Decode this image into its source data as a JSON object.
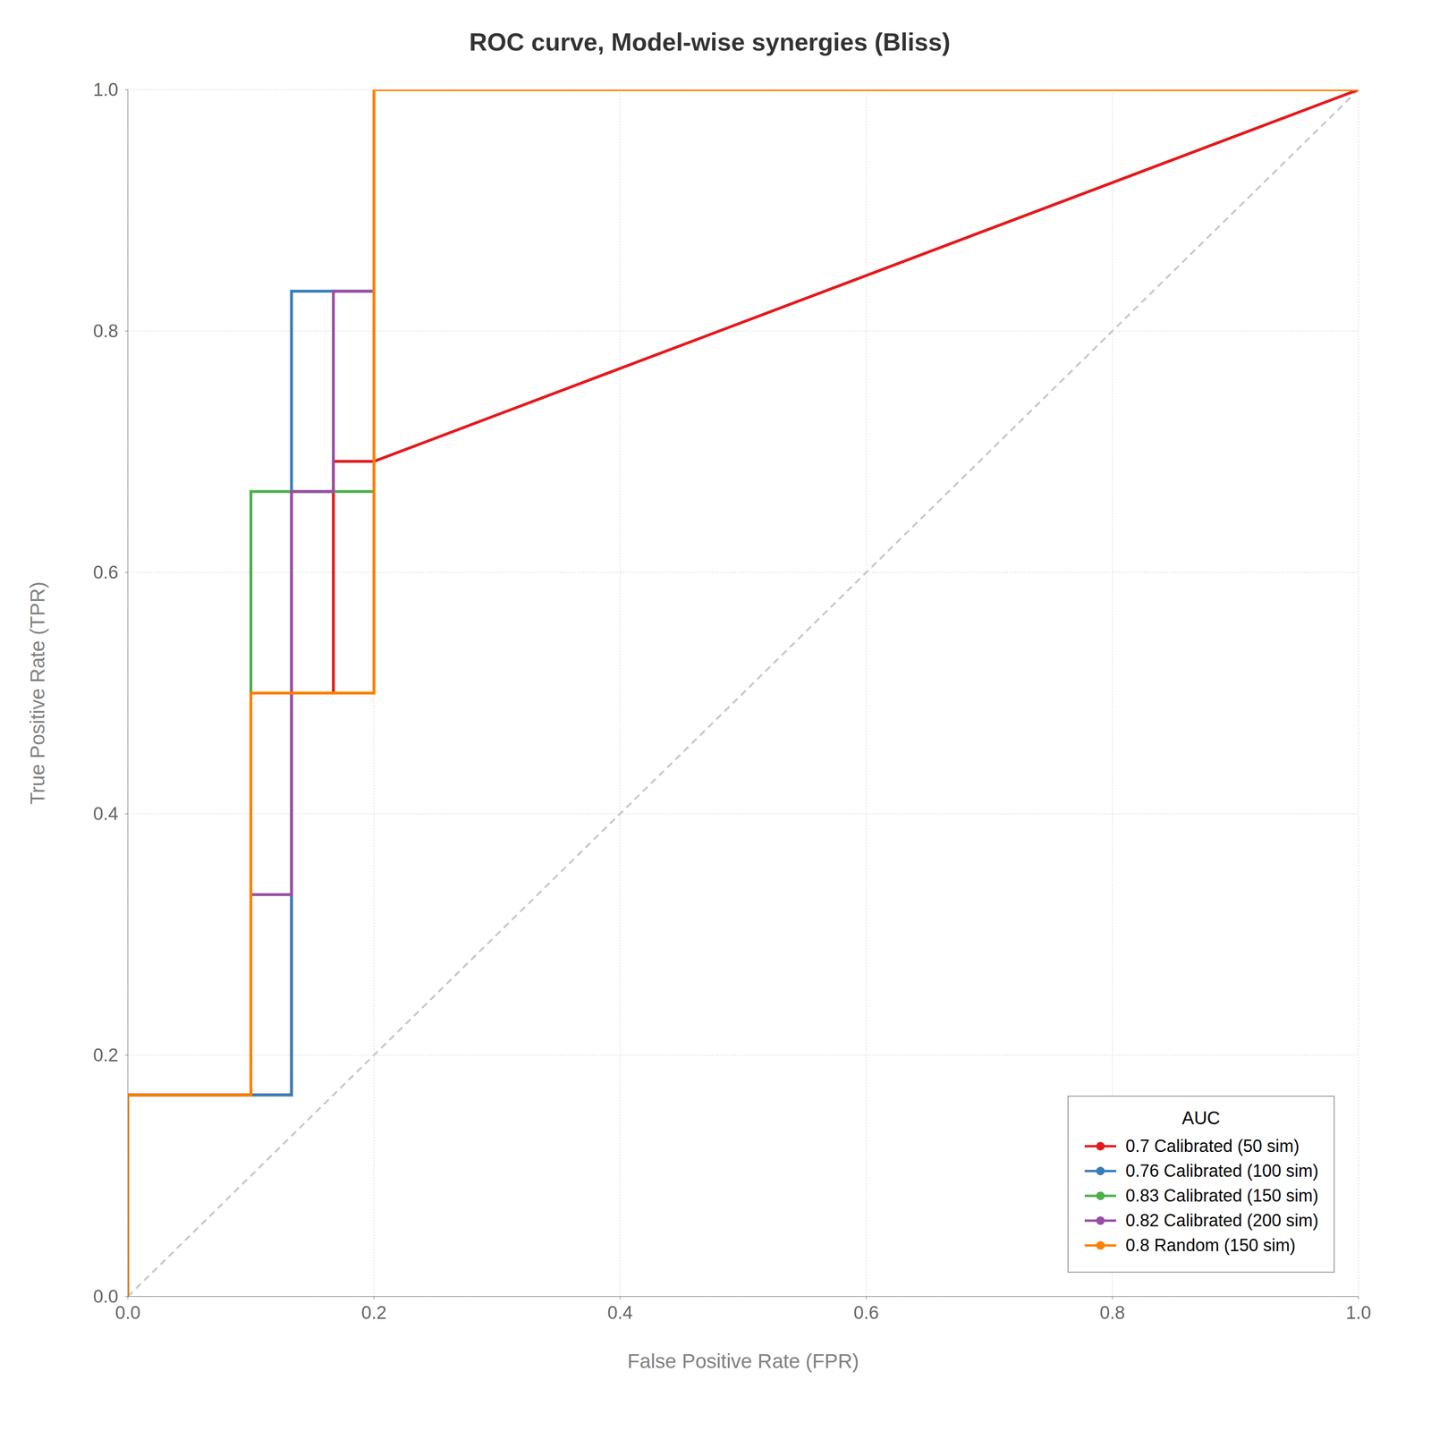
{
  "chart_data": {
    "type": "line",
    "title": "ROC curve, Model-wise synergies (Bliss)",
    "xlabel": "False Positive Rate (FPR)",
    "ylabel": "True Positive Rate (TPR)",
    "legend_title": "AUC",
    "legend": "lower right",
    "grid": true,
    "xlim": [
      0.0,
      1.0
    ],
    "ylim": [
      0.0,
      1.0
    ],
    "xticks": [
      {
        "value": 0.0,
        "label": "0.0"
      },
      0.2,
      0.4,
      0.6,
      0.8,
      {
        "value": 1.0,
        "label": "1.0"
      }
    ],
    "yticks": [
      {
        "value": 0.0,
        "label": "0.0"
      },
      0.2,
      0.4,
      0.6,
      0.8,
      {
        "value": 1.0,
        "label": "1.0"
      }
    ],
    "series": [
      {
        "color": "#c8c8c8",
        "line_style": "dashed",
        "x": [
          0,
          1
        ],
        "values": [
          0,
          1
        ]
      },
      {
        "name": "0.7 Calibrated (50 sim)",
        "color": "#e41a1c",
        "x": [
          0.0,
          0.0,
          0.067,
          0.067,
          0.1,
          0.1,
          0.133,
          0.133,
          0.167,
          0.167,
          0.2,
          0.2,
          1.0
        ],
        "values": [
          0.0,
          0.167,
          0.167,
          0.167,
          0.167,
          0.167,
          0.167,
          0.5,
          0.5,
          0.692,
          0.692,
          0.692,
          1.0
        ]
      },
      {
        "name": "0.76 Calibrated (100 sim)",
        "color": "#377eb8",
        "x": [
          0.0,
          0.0,
          0.067,
          0.067,
          0.1,
          0.1,
          0.133,
          0.133,
          0.167,
          0.167,
          0.2,
          0.2,
          1.0
        ],
        "values": [
          0.0,
          0.167,
          0.167,
          0.167,
          0.167,
          0.167,
          0.167,
          0.833,
          0.833,
          0.833,
          0.833,
          1.0,
          1.0
        ]
      },
      {
        "name": "0.83 Calibrated (150 sim)",
        "color": "#4daf4a",
        "x": [
          0.0,
          0.0,
          0.067,
          0.067,
          0.1,
          0.1,
          0.133,
          0.133,
          0.167,
          0.167,
          0.2,
          0.2,
          1.0
        ],
        "values": [
          0.0,
          0.167,
          0.167,
          0.167,
          0.167,
          0.667,
          0.667,
          0.667,
          0.667,
          0.667,
          0.667,
          1.0,
          1.0
        ]
      },
      {
        "name": "0.82 Calibrated (200 sim)",
        "color": "#984ea3",
        "x": [
          0.0,
          0.0,
          0.067,
          0.067,
          0.1,
          0.1,
          0.133,
          0.133,
          0.167,
          0.167,
          0.2,
          0.2,
          1.0
        ],
        "values": [
          0.0,
          0.167,
          0.167,
          0.167,
          0.167,
          0.333,
          0.333,
          0.667,
          0.667,
          0.833,
          0.833,
          1.0,
          1.0
        ]
      },
      {
        "name": "0.8 Random (150 sim)",
        "color": "#ff7f00",
        "x": [
          0.0,
          0.0,
          0.067,
          0.067,
          0.1,
          0.1,
          0.133,
          0.133,
          0.2,
          0.2,
          1.0
        ],
        "values": [
          0.0,
          0.167,
          0.167,
          0.167,
          0.167,
          0.5,
          0.5,
          0.5,
          0.5,
          1.0,
          1.0
        ]
      }
    ]
  }
}
